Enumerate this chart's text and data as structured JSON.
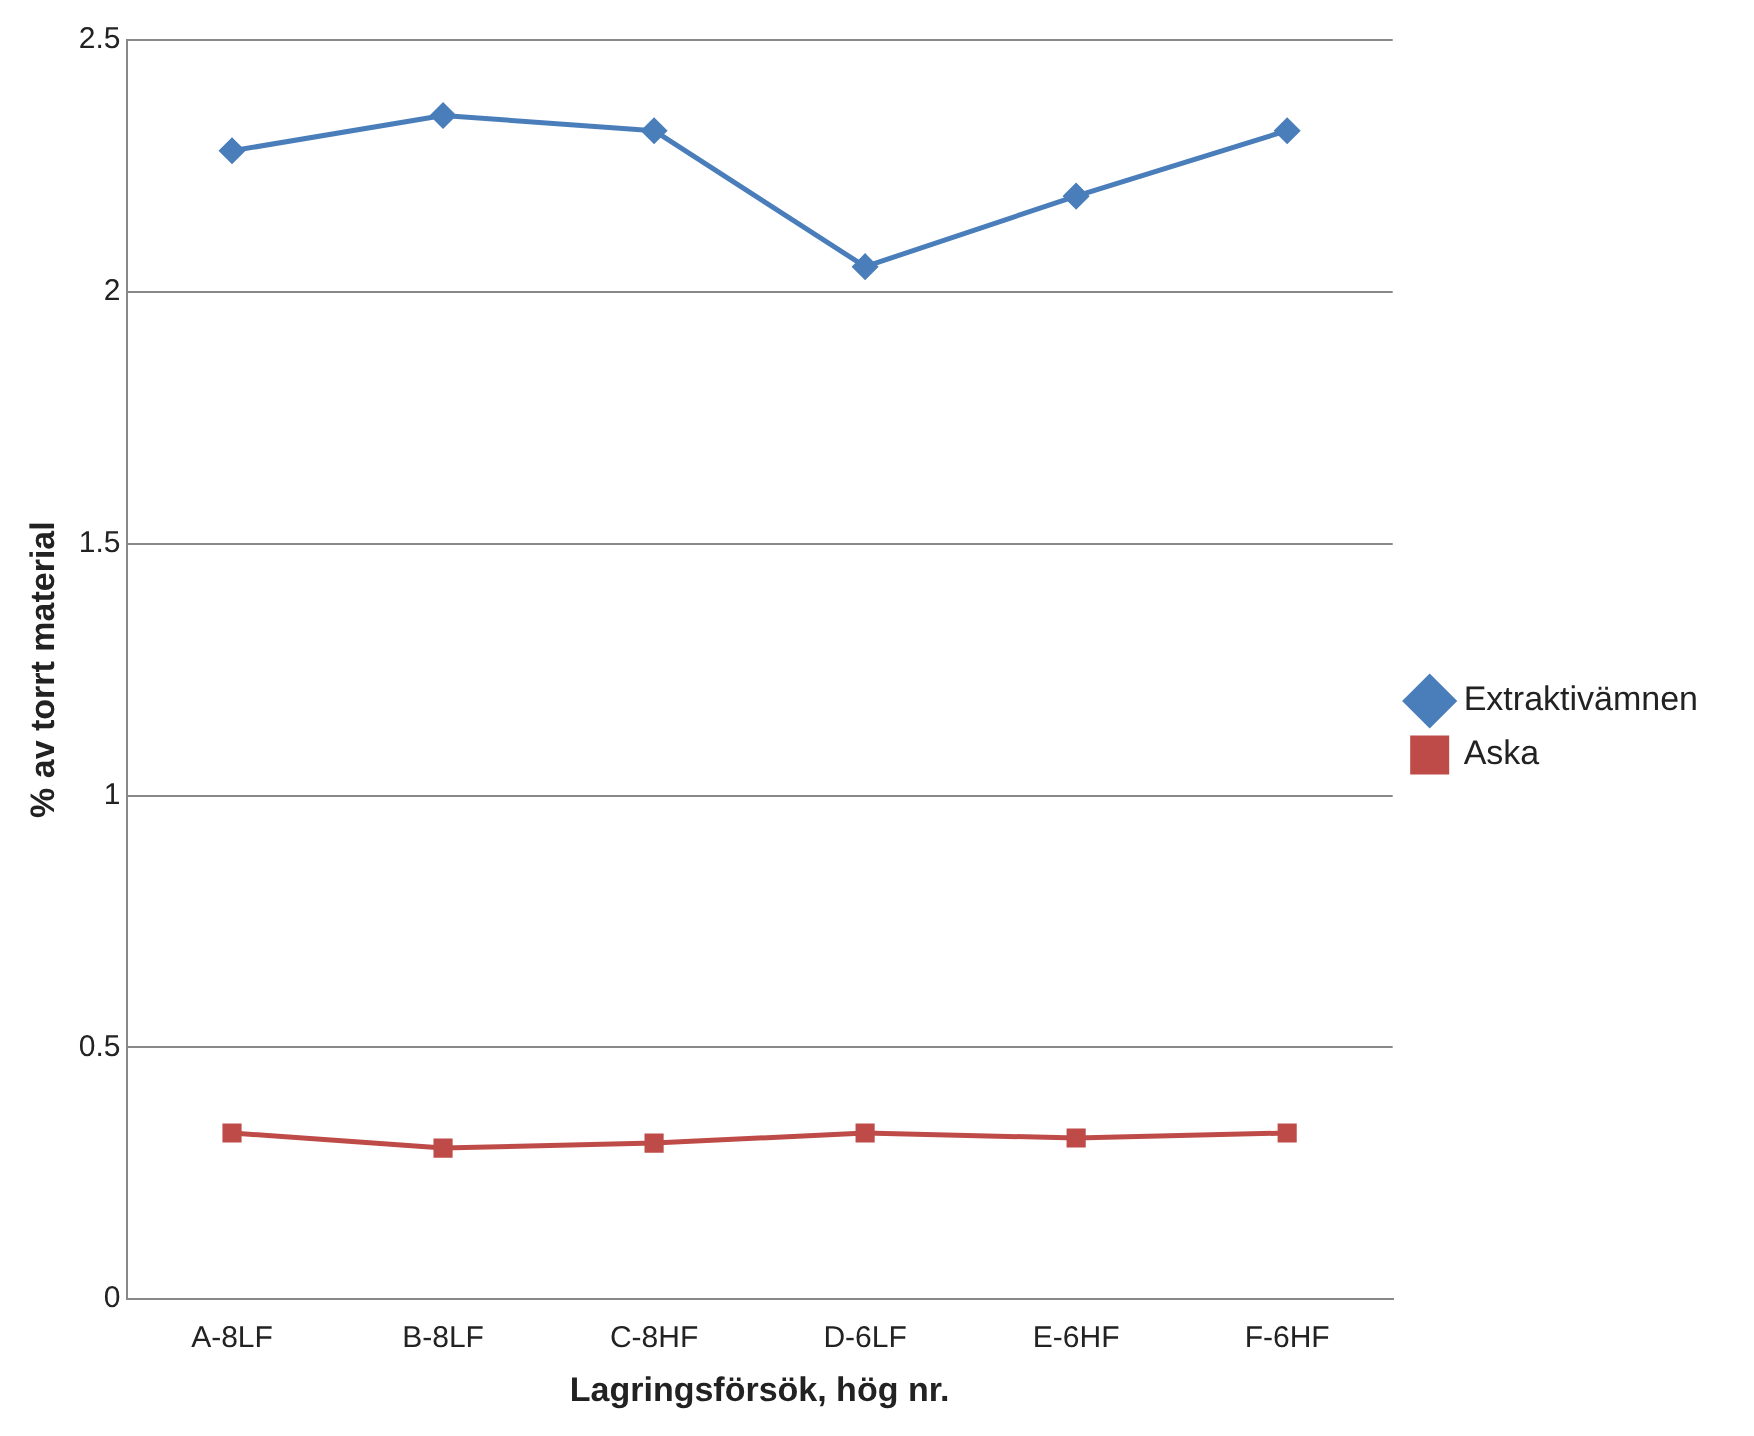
{
  "chart_data": {
    "type": "line",
    "xlabel": "Lagringsförsök, hög nr.",
    "ylabel": "% av torrt material",
    "categories": [
      "A-8LF",
      "B-8LF",
      "C-8HF",
      "D-6LF",
      "E-6HF",
      "F-6HF"
    ],
    "series": [
      {
        "name": "Extraktivämnen",
        "color": "#4a7ebb",
        "marker": "diamond",
        "values": [
          2.28,
          2.35,
          2.32,
          2.05,
          2.19,
          2.32
        ]
      },
      {
        "name": "Aska",
        "color": "#be4b48",
        "marker": "square",
        "values": [
          0.33,
          0.3,
          0.31,
          0.33,
          0.32,
          0.33
        ]
      }
    ],
    "ylim": [
      0,
      2.5
    ],
    "yticks": [
      0,
      0.5,
      1,
      1.5,
      2,
      2.5
    ],
    "grid": "y",
    "legend": "right",
    "line_style": "solid"
  }
}
